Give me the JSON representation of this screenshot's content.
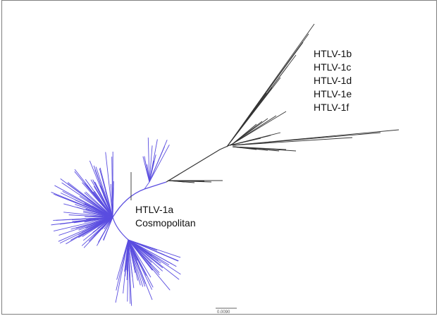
{
  "labels": {
    "clade_b": "HTLV-1b",
    "clade_c": "HTLV-1c",
    "clade_d": "HTLV-1d",
    "clade_e": "HTLV-1e",
    "clade_f": "HTLV-1f",
    "clade_a_line1": "HTLV-1a",
    "clade_a_line2": "Cosmopolitan"
  },
  "scale_bar": {
    "label": "0.0090"
  },
  "colors": {
    "cosmopolitan": "#5a4de0",
    "other": "#333333",
    "frame": "#7f7f7f"
  }
}
